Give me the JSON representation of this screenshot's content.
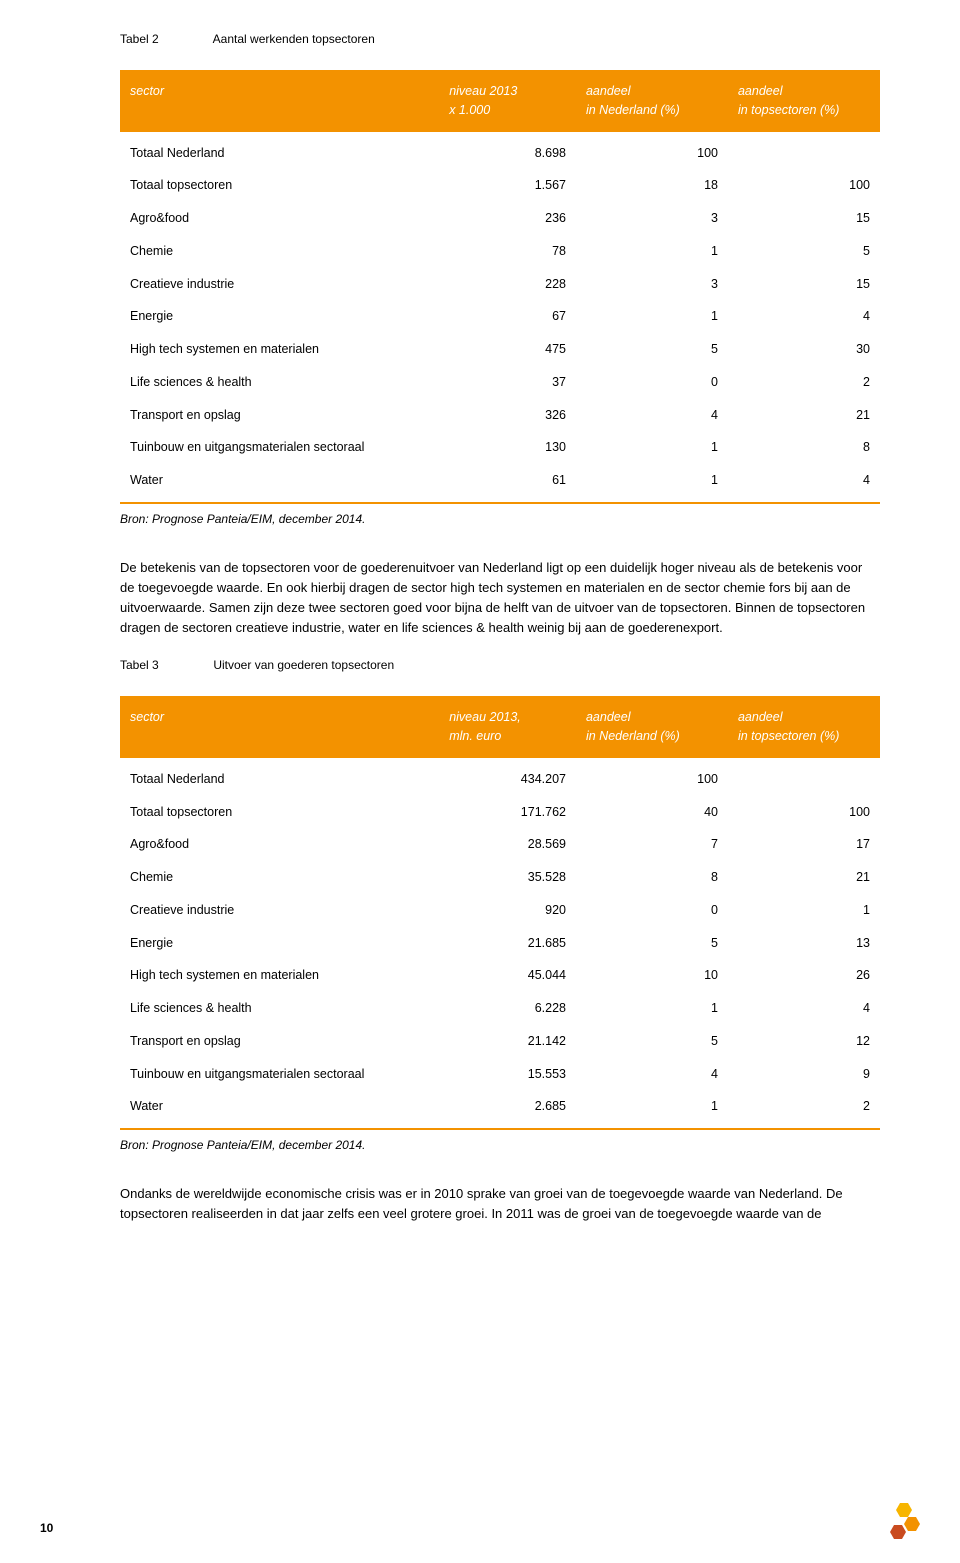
{
  "table2": {
    "caption_label": "Tabel 2",
    "caption_title": "Aantal werkenden topsectoren",
    "header_bg": "#f39200",
    "header_fg": "#ffffff",
    "rule_color": "#f39200",
    "columns": [
      {
        "line1": "",
        "line2": "sector"
      },
      {
        "line1": "niveau 2013",
        "line2": "x 1.000"
      },
      {
        "line1": "aandeel",
        "line2": "in Nederland (%)"
      },
      {
        "line1": "aandeel",
        "line2": "in topsectoren (%)"
      }
    ],
    "rows": [
      {
        "label": "Totaal Nederland",
        "c1": "8.698",
        "c2": "100",
        "c3": ""
      },
      {
        "label": "Totaal topsectoren",
        "c1": "1.567",
        "c2": "18",
        "c3": "100"
      },
      {
        "label": "Agro&food",
        "c1": "236",
        "c2": "3",
        "c3": "15"
      },
      {
        "label": "Chemie",
        "c1": "78",
        "c2": "1",
        "c3": "5"
      },
      {
        "label": "Creatieve industrie",
        "c1": "228",
        "c2": "3",
        "c3": "15"
      },
      {
        "label": "Energie",
        "c1": "67",
        "c2": "1",
        "c3": "4"
      },
      {
        "label": "High tech systemen en materialen",
        "c1": "475",
        "c2": "5",
        "c3": "30"
      },
      {
        "label": "Life sciences & health",
        "c1": "37",
        "c2": "0",
        "c3": "2"
      },
      {
        "label": "Transport en opslag",
        "c1": "326",
        "c2": "4",
        "c3": "21"
      },
      {
        "label": "Tuinbouw en uitgangsmaterialen sectoraal",
        "c1": "130",
        "c2": "1",
        "c3": "8"
      },
      {
        "label": "Water",
        "c1": "61",
        "c2": "1",
        "c3": "4"
      }
    ],
    "source": "Bron: Prognose Panteia/EIM, december 2014."
  },
  "paragraph1": "De betekenis van de topsectoren voor de goederenuitvoer van Nederland ligt op een duidelijk hoger niveau als de betekenis voor de toegevoegde waarde. En ook hierbij dragen de sector high tech systemen en materialen en de sector chemie fors bij aan de uitvoerwaarde. Samen zijn deze twee sectoren goed voor bijna de helft van de uitvoer van de topsectoren. Binnen de topsectoren dragen de sectoren creatieve industrie, water en life sciences & health weinig bij aan de goederenexport.",
  "table3": {
    "caption_label": "Tabel 3",
    "caption_title": "Uitvoer van goederen topsectoren",
    "header_bg": "#f39200",
    "header_fg": "#ffffff",
    "rule_color": "#f39200",
    "columns": [
      {
        "line1": "",
        "line2": "sector"
      },
      {
        "line1": "niveau 2013,",
        "line2": "mln. euro"
      },
      {
        "line1": "aandeel",
        "line2": "in Nederland (%)"
      },
      {
        "line1": "aandeel",
        "line2": "in topsectoren (%)"
      }
    ],
    "rows": [
      {
        "label": "Totaal Nederland",
        "c1": "434.207",
        "c2": "100",
        "c3": ""
      },
      {
        "label": "Totaal topsectoren",
        "c1": "171.762",
        "c2": "40",
        "c3": "100"
      },
      {
        "label": "Agro&food",
        "c1": "28.569",
        "c2": "7",
        "c3": "17"
      },
      {
        "label": "Chemie",
        "c1": "35.528",
        "c2": "8",
        "c3": "21"
      },
      {
        "label": "Creatieve industrie",
        "c1": "920",
        "c2": "0",
        "c3": "1"
      },
      {
        "label": "Energie",
        "c1": "21.685",
        "c2": "5",
        "c3": "13"
      },
      {
        "label": "High tech systemen en materialen",
        "c1": "45.044",
        "c2": "10",
        "c3": "26"
      },
      {
        "label": "Life sciences & health",
        "c1": "6.228",
        "c2": "1",
        "c3": "4"
      },
      {
        "label": "Transport en opslag",
        "c1": "21.142",
        "c2": "5",
        "c3": "12"
      },
      {
        "label": "Tuinbouw en uitgangsmaterialen sectoraal",
        "c1": "15.553",
        "c2": "4",
        "c3": "9"
      },
      {
        "label": "Water",
        "c1": "2.685",
        "c2": "1",
        "c3": "2"
      }
    ],
    "source": "Bron: Prognose Panteia/EIM, december 2014."
  },
  "paragraph2": "Ondanks de wereldwijde economische crisis was er in 2010 sprake van groei van de toegevoegde waarde van Nederland. De topsectoren realiseerden in dat jaar zelfs een veel grotere groei. In 2011 was de groei van de toegevoegde waarde van de",
  "page_number": "10",
  "hex_colors": {
    "yellow": "#f7b500",
    "orange": "#f39200",
    "red": "#c94b1f"
  },
  "col_widths": {
    "c0": "42%",
    "c1": "18%",
    "c2": "20%",
    "c3": "20%"
  }
}
